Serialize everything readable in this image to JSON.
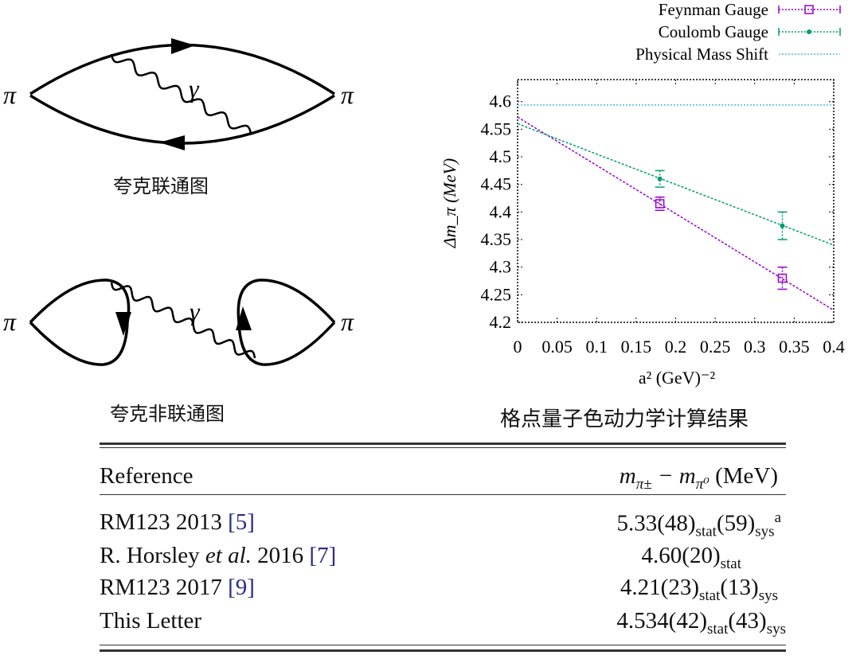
{
  "diagrams": {
    "connected": {
      "left_label": "π",
      "right_label": "π",
      "photon_label": "γ",
      "caption": "夸克联通图"
    },
    "disconnected": {
      "left_label": "π",
      "right_label": "π",
      "photon_label": "γ",
      "caption": "夸克非联通图"
    }
  },
  "chart_caption": "格点量子色动力学计算结果",
  "chart_data": {
    "type": "scatter",
    "xlabel": "a² (GeV)⁻²",
    "ylabel": "Δm_π (MeV)",
    "xlim": [
      0,
      0.4
    ],
    "ylim": [
      4.2,
      4.64
    ],
    "xticks": [
      "0",
      "0.05",
      "0.1",
      "0.15",
      "0.2",
      "0.25",
      "0.3",
      "0.35",
      "0.4"
    ],
    "yticks": [
      "4.2",
      "4.25",
      "4.3",
      "4.35",
      "4.4",
      "4.45",
      "4.5",
      "4.55",
      "4.6"
    ],
    "legend_position": "top-right",
    "grid": false,
    "series": [
      {
        "name": "Feynman Gauge",
        "color": "#9400d3",
        "marker": "square",
        "points": [
          {
            "x": 0.18,
            "y": 4.415,
            "err": 0.012
          },
          {
            "x": 0.335,
            "y": 4.28,
            "err": 0.02
          }
        ],
        "fit": [
          {
            "x": 0,
            "y": 4.572
          },
          {
            "x": 0.4,
            "y": 4.222
          }
        ]
      },
      {
        "name": "Coulomb Gauge",
        "color": "#009e73",
        "marker": "star",
        "points": [
          {
            "x": 0.18,
            "y": 4.46,
            "err": 0.015
          },
          {
            "x": 0.335,
            "y": 4.375,
            "err": 0.025
          }
        ],
        "fit": [
          {
            "x": 0,
            "y": 4.56
          },
          {
            "x": 0.4,
            "y": 4.34
          }
        ]
      },
      {
        "name": "Physical Mass Shift",
        "color": "#56b4e9",
        "marker": "none",
        "hline": 4.594
      }
    ]
  },
  "table": {
    "header": {
      "reference": "Reference",
      "value_main": "m",
      "value_sub1": "π±",
      "value_minus": " − m",
      "value_sub2": "π⁰",
      "value_unit": " (MeV)"
    },
    "rows": [
      {
        "name": "RM123 2013 ",
        "ref": "[5]",
        "v": "5.33(48)",
        "s1": "stat",
        "v2": "(59)",
        "s2": "sys",
        "note": "a"
      },
      {
        "name": "R. Horsley ",
        "italic": "et al.",
        "name2": " 2016 ",
        "ref": "[7]",
        "v": "4.60(20)",
        "s1": "stat"
      },
      {
        "name": "RM123 2017 ",
        "ref": "[9]",
        "v": "4.21(23)",
        "s1": "stat",
        "v2": "(13)",
        "s2": "sys"
      },
      {
        "name": "This Letter",
        "v": "4.534(42)",
        "s1": "stat",
        "v2": "(43)",
        "s2": "sys"
      }
    ]
  }
}
